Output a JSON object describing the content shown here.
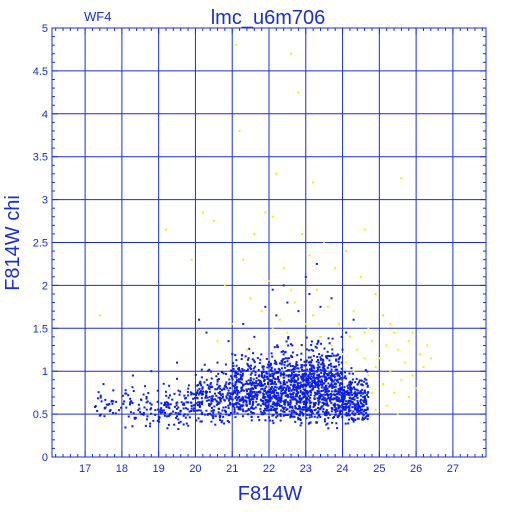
{
  "chart_data": {
    "type": "scatter",
    "title": "lmc_u6m706",
    "subtitle": "WF4",
    "xlabel": "F814W",
    "ylabel": "F814W  chi",
    "xlim": [
      16.1,
      27.9
    ],
    "ylim": [
      0,
      5
    ],
    "xticks": [
      17,
      18,
      19,
      20,
      21,
      22,
      23,
      24,
      25,
      26,
      27
    ],
    "yticks": [
      0,
      0.5,
      1,
      1.5,
      2,
      2.5,
      3,
      3.5,
      4,
      4.5,
      5
    ],
    "ytick_labels": [
      "0",
      "0.5",
      "1",
      "1.5",
      "2",
      "2.5",
      "3",
      "3.5",
      "4",
      "4.5",
      "5"
    ],
    "grid": true,
    "colors": {
      "axis": "#1a2fd0",
      "blue_series": "#0a1ee6",
      "yellow_series": "#f0f000"
    },
    "series": [
      {
        "color": "yellow",
        "points": [
          [
            21.1,
            4.8
          ],
          [
            22.6,
            4.7
          ],
          [
            22.8,
            4.25
          ],
          [
            21.2,
            3.8
          ],
          [
            22.2,
            3.3
          ],
          [
            23.2,
            3.2
          ],
          [
            25.6,
            3.25
          ],
          [
            20.2,
            2.85
          ],
          [
            21.9,
            2.85
          ],
          [
            19.2,
            2.65
          ],
          [
            24.6,
            2.65
          ],
          [
            22.1,
            2.8
          ],
          [
            20.5,
            2.75
          ],
          [
            21.6,
            2.6
          ],
          [
            22.9,
            2.6
          ],
          [
            23.5,
            2.5
          ],
          [
            24.1,
            2.4
          ],
          [
            23.1,
            2.35
          ],
          [
            19.9,
            2.3
          ],
          [
            21.3,
            2.3
          ],
          [
            22.4,
            2.2
          ],
          [
            23.8,
            2.2
          ],
          [
            24.5,
            2.1
          ],
          [
            20.8,
            2.0
          ],
          [
            22.0,
            2.05
          ],
          [
            23.3,
            1.95
          ],
          [
            24.9,
            1.9
          ],
          [
            17.4,
            1.65
          ],
          [
            21.5,
            1.85
          ],
          [
            22.7,
            1.8
          ],
          [
            23.6,
            1.75
          ],
          [
            24.3,
            1.7
          ],
          [
            25.1,
            1.65
          ],
          [
            22.3,
            1.6
          ],
          [
            23.0,
            1.55
          ],
          [
            23.9,
            1.55
          ],
          [
            24.7,
            1.5
          ],
          [
            25.4,
            1.45
          ],
          [
            22.5,
            1.45
          ],
          [
            23.4,
            1.4
          ],
          [
            24.2,
            1.4
          ],
          [
            24.8,
            1.35
          ],
          [
            25.8,
            1.35
          ],
          [
            26.3,
            1.3
          ],
          [
            25.2,
            1.3
          ],
          [
            23.7,
            1.3
          ],
          [
            24.4,
            1.25
          ],
          [
            25.5,
            1.25
          ],
          [
            26.1,
            1.2
          ],
          [
            24.0,
            1.2
          ],
          [
            24.6,
            1.15
          ],
          [
            25.0,
            1.15
          ],
          [
            25.7,
            1.1
          ],
          [
            26.2,
            1.05
          ],
          [
            24.1,
            1.1
          ],
          [
            24.9,
            1.05
          ],
          [
            25.3,
            1.0
          ],
          [
            25.9,
            0.95
          ],
          [
            24.3,
            1.0
          ],
          [
            24.7,
            0.95
          ],
          [
            25.6,
            0.9
          ],
          [
            24.5,
            0.85
          ],
          [
            25.1,
            0.85
          ],
          [
            26.0,
            0.8
          ],
          [
            24.2,
            0.8
          ],
          [
            24.8,
            0.75
          ],
          [
            25.4,
            0.75
          ],
          [
            24.4,
            0.7
          ],
          [
            25.8,
            0.7
          ],
          [
            24.6,
            0.65
          ],
          [
            25.2,
            0.6
          ],
          [
            24.1,
            0.6
          ],
          [
            24.9,
            0.55
          ],
          [
            25.5,
            0.5
          ],
          [
            23.9,
            1.05
          ],
          [
            24.0,
            0.9
          ],
          [
            23.8,
            0.85
          ],
          [
            22.9,
            1.3
          ],
          [
            22.1,
            1.5
          ],
          [
            21.8,
            1.7
          ],
          [
            21.0,
            1.55
          ],
          [
            20.6,
            1.35
          ],
          [
            21.4,
            1.25
          ],
          [
            23.5,
            1.1
          ],
          [
            25.3,
            1.55
          ],
          [
            25.9,
            1.45
          ],
          [
            26.4,
            1.15
          ],
          [
            24.6,
            1.45
          ],
          [
            23.2,
            1.65
          ],
          [
            22.6,
            1.95
          ]
        ]
      },
      {
        "color": "blue",
        "bands": [
          {
            "x": [
              17.2,
              18.0
            ],
            "y": [
              0.4,
              0.85
            ],
            "n": 30
          },
          {
            "x": [
              18.0,
              19.0
            ],
            "y": [
              0.3,
              0.95
            ],
            "n": 60
          },
          {
            "x": [
              19.0,
              20.0
            ],
            "y": [
              0.3,
              1.0
            ],
            "n": 110
          },
          {
            "x": [
              20.0,
              21.0
            ],
            "y": [
              0.35,
              1.2
            ],
            "n": 220
          },
          {
            "x": [
              21.0,
              22.0
            ],
            "y": [
              0.35,
              1.35
            ],
            "n": 380
          },
          {
            "x": [
              22.0,
              23.0
            ],
            "y": [
              0.3,
              1.5
            ],
            "n": 520
          },
          {
            "x": [
              23.0,
              24.0
            ],
            "y": [
              0.3,
              1.55
            ],
            "n": 560
          },
          {
            "x": [
              24.0,
              24.7
            ],
            "y": [
              0.35,
              1.1
            ],
            "n": 260
          }
        ],
        "outliers": [
          [
            20.1,
            1.6
          ],
          [
            20.3,
            1.45
          ],
          [
            20.9,
            1.35
          ],
          [
            21.3,
            1.55
          ],
          [
            21.6,
            1.4
          ],
          [
            21.9,
            1.75
          ],
          [
            22.2,
            1.65
          ],
          [
            22.5,
            1.8
          ],
          [
            22.8,
            1.7
          ],
          [
            23.1,
            1.9
          ],
          [
            23.4,
            1.75
          ],
          [
            23.7,
            1.85
          ],
          [
            22.4,
            2.0
          ],
          [
            23.0,
            2.1
          ],
          [
            23.3,
            2.25
          ],
          [
            22.1,
            1.95
          ],
          [
            24.1,
            1.45
          ],
          [
            24.3,
            1.6
          ],
          [
            21.0,
            1.2
          ],
          [
            20.6,
            1.1
          ],
          [
            19.5,
            1.1
          ],
          [
            18.8,
            1.0
          ],
          [
            17.5,
            0.85
          ],
          [
            18.3,
            0.95
          ]
        ]
      }
    ]
  }
}
